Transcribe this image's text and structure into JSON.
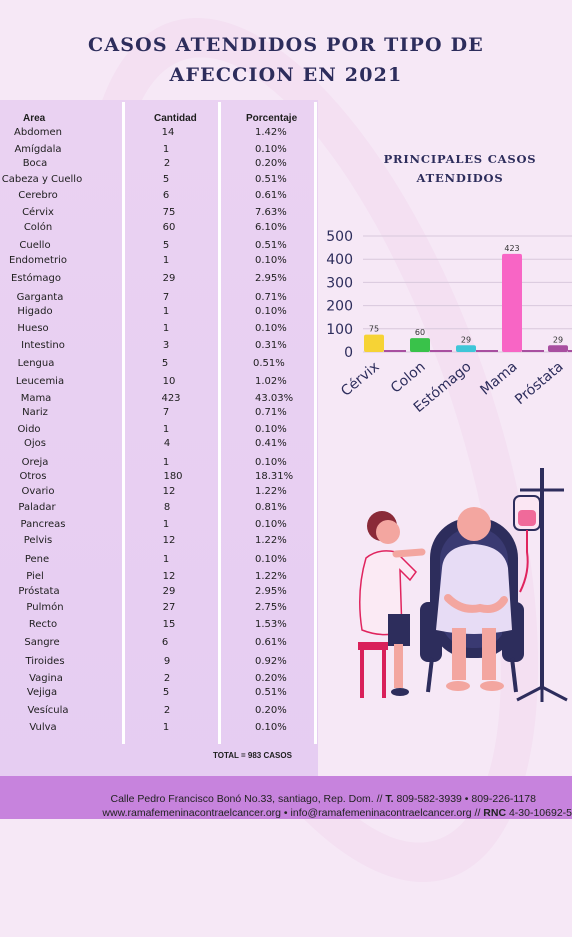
{
  "title": {
    "line1": "CASOS ATENDIDOS POR TIPO DE",
    "line2": "AFECCION EN 2021"
  },
  "table": {
    "headers": {
      "area": "Area",
      "cantidad": "Cantidad",
      "porcentaje": "Porcentaje"
    },
    "rows": [
      {
        "area": "Abdomen",
        "cantidad": "14",
        "porcentaje": "1.42%"
      },
      {
        "area": "Amígdala",
        "cantidad": "1",
        "porcentaje": "0.10%"
      },
      {
        "area": "Boca",
        "cantidad": "2",
        "porcentaje": "0.20%"
      },
      {
        "area": "Cabeza y Cuello",
        "cantidad": "5",
        "porcentaje": "0.51%"
      },
      {
        "area": "Cerebro",
        "cantidad": "6",
        "porcentaje": "0.61%"
      },
      {
        "area": "Cérvix",
        "cantidad": "75",
        "porcentaje": "7.63%"
      },
      {
        "area": "Colón",
        "cantidad": "60",
        "porcentaje": "6.10%"
      },
      {
        "area": "Cuello",
        "cantidad": "5",
        "porcentaje": "0.51%"
      },
      {
        "area": "Endometrio",
        "cantidad": "1",
        "porcentaje": "0.10%"
      },
      {
        "area": "Estómago",
        "cantidad": "29",
        "porcentaje": "2.95%"
      },
      {
        "area": "Garganta",
        "cantidad": "7",
        "porcentaje": "0.71%"
      },
      {
        "area": "Higado",
        "cantidad": "1",
        "porcentaje": "0.10%"
      },
      {
        "area": "Hueso",
        "cantidad": "1",
        "porcentaje": "0.10%"
      },
      {
        "area": "Intestino",
        "cantidad": "3",
        "porcentaje": "0.31%"
      },
      {
        "area": "Lengua",
        "cantidad": "5",
        "porcentaje": "0.51%"
      },
      {
        "area": "Leucemia",
        "cantidad": "10",
        "porcentaje": "1.02%"
      },
      {
        "area": "Mama",
        "cantidad": "423",
        "porcentaje": "43.03%"
      },
      {
        "area": "Nariz",
        "cantidad": "7",
        "porcentaje": "0.71%"
      },
      {
        "area": "Oido",
        "cantidad": "1",
        "porcentaje": "0.10%"
      },
      {
        "area": "Ojos",
        "cantidad": "4",
        "porcentaje": "0.41%"
      },
      {
        "area": "Oreja",
        "cantidad": "1",
        "porcentaje": "0.10%"
      },
      {
        "area": "Otros",
        "cantidad": "180",
        "porcentaje": "18.31%"
      },
      {
        "area": "Ovario",
        "cantidad": "12",
        "porcentaje": "1.22%"
      },
      {
        "area": "Paladar",
        "cantidad": "8",
        "porcentaje": "0.81%"
      },
      {
        "area": "Pancreas",
        "cantidad": "1",
        "porcentaje": "0.10%"
      },
      {
        "area": "Pelvis",
        "cantidad": "12",
        "porcentaje": "1.22%"
      },
      {
        "area": "Pene",
        "cantidad": "1",
        "porcentaje": "0.10%"
      },
      {
        "area": "Piel",
        "cantidad": "12",
        "porcentaje": "1.22%"
      },
      {
        "area": "Próstata",
        "cantidad": "29",
        "porcentaje": "2.95%"
      },
      {
        "area": "Pulmón",
        "cantidad": "27",
        "porcentaje": "2.75%"
      },
      {
        "area": "Recto",
        "cantidad": "15",
        "porcentaje": "1.53%"
      },
      {
        "area": "Sangre",
        "cantidad": "6",
        "porcentaje": "0.61%"
      },
      {
        "area": "Tiroides",
        "cantidad": "9",
        "porcentaje": "0.92%"
      },
      {
        "area": "Vagina",
        "cantidad": "2",
        "porcentaje": "0.20%"
      },
      {
        "area": "Vejiga",
        "cantidad": "5",
        "porcentaje": "0.51%"
      },
      {
        "area": "Vesícula",
        "cantidad": "2",
        "porcentaje": "0.20%"
      },
      {
        "area": "Vulva",
        "cantidad": "1",
        "porcentaje": "0.10%"
      }
    ],
    "total": "TOTAL = 983 CASOS"
  },
  "chart_title": {
    "line1": "PRINCIPALES CASOS",
    "line2": "ATENDIDOS"
  },
  "chart_data": {
    "type": "bar",
    "title": "PRINCIPALES CASOS ATENDIDOS",
    "categories": [
      "Cérvix",
      "Colon",
      "Estómago",
      "Mama",
      "Próstata"
    ],
    "values": [
      75,
      60,
      29,
      423,
      29
    ],
    "data_labels": [
      "75",
      "60",
      "29",
      "423",
      "29"
    ],
    "colors": [
      "#f6d335",
      "#39c24a",
      "#3ec6d8",
      "#f865c5",
      "#a84fa0"
    ],
    "ylim": [
      0,
      500
    ],
    "yticks": [
      "0",
      "100",
      "200",
      "300",
      "400",
      "500"
    ],
    "grid": true,
    "legend": "none"
  },
  "colors": {
    "title": "#2d2d5c",
    "background": "#f6e8f6",
    "table_panel": "#e8cff2",
    "footer": "#c783dd"
  },
  "illustration": {
    "name": "nurse-with-patient-iv-illustration"
  },
  "footer": {
    "address": "Calle Pedro Francisco Bonó No.33, santiago, Rep. Dom. // ",
    "t_label": "T.",
    "phones": " 809-582-3939  •   809-226-1178",
    "website": "www.ramafemeninacontraelcancer.org",
    "sep": "  •  ",
    "email": "info@ramafemeninacontraelcancer.org",
    "rnc_sep": " // ",
    "rnc_label": "RNC",
    "rnc": " 4-30-10692-5"
  }
}
